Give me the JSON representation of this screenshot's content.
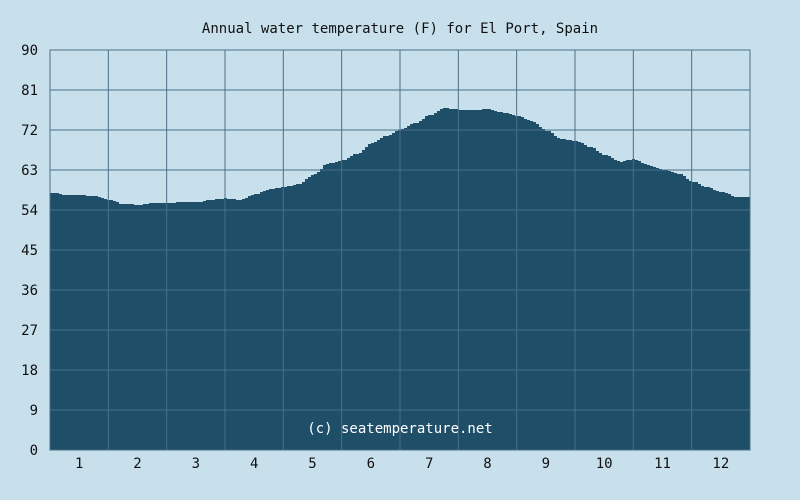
{
  "chart_data": {
    "type": "area",
    "title": "Annual water temperature (F) for El Port, Spain",
    "xlabel": "",
    "ylabel": "",
    "ylim": [
      0,
      90
    ],
    "yticks": [
      0,
      9,
      18,
      27,
      36,
      45,
      54,
      63,
      72,
      81,
      90
    ],
    "xlim": [
      0.5,
      12.5
    ],
    "xticks": [
      1,
      2,
      3,
      4,
      5,
      6,
      7,
      8,
      9,
      10,
      11,
      12
    ],
    "grid": true,
    "x": [
      0.5,
      0.75,
      1.0,
      1.25,
      1.5,
      1.75,
      2.0,
      2.25,
      2.5,
      2.75,
      3.0,
      3.25,
      3.5,
      3.75,
      4.0,
      4.25,
      4.5,
      4.75,
      5.0,
      5.25,
      5.5,
      5.75,
      6.0,
      6.25,
      6.5,
      6.75,
      7.0,
      7.25,
      7.5,
      7.75,
      8.0,
      8.25,
      8.5,
      8.75,
      9.0,
      9.25,
      9.5,
      9.75,
      10.0,
      10.25,
      10.5,
      10.75,
      11.0,
      11.25,
      11.5,
      11.75,
      12.0,
      12.25,
      12.5
    ],
    "values": [
      57.9,
      57.4,
      57.3,
      57.1,
      56.2,
      55.3,
      55.2,
      55.6,
      55.6,
      55.8,
      55.8,
      56.3,
      56.6,
      56.3,
      57.6,
      58.7,
      59.2,
      59.9,
      62.0,
      64.5,
      65.2,
      66.7,
      69.1,
      70.7,
      72.1,
      73.6,
      75.4,
      76.9,
      76.6,
      76.5,
      76.7,
      75.9,
      75.2,
      73.9,
      71.8,
      69.9,
      69.5,
      68.1,
      66.3,
      64.9,
      65.4,
      64.0,
      63.0,
      62.2,
      60.4,
      59.1,
      58.0,
      57.0,
      57.0
    ],
    "annotation": "(c) seatemperature.net",
    "colors": {
      "background": "#c8e0ec",
      "area": "#1f4e68",
      "grid": "#4a6f88",
      "text": "#111111",
      "annotation": "#ffffff"
    }
  }
}
